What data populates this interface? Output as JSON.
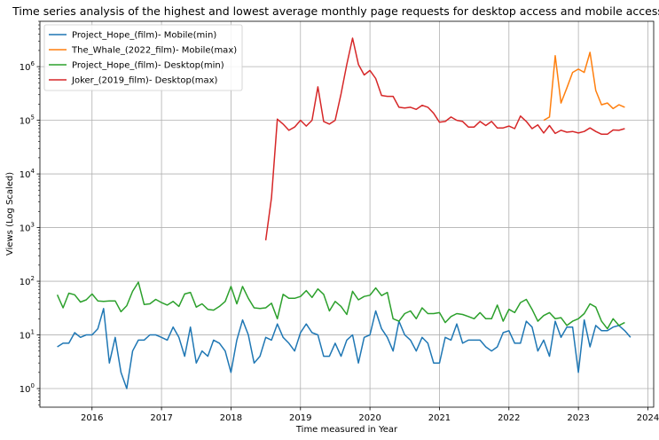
{
  "chart_data": {
    "type": "line",
    "title": "Time series analysis of the highest and lowest average monthly page requests for desktop access and mobile access",
    "xlabel": "Time measured in Year",
    "ylabel": "Views (Log Scaled)",
    "yscale": "log",
    "grid": true,
    "legend_position": "top-left",
    "xlim": [
      "2015-04",
      "2024-02"
    ],
    "ylim": [
      0.45,
      7000000
    ],
    "x_ticks": [
      "2016",
      "2017",
      "2018",
      "2019",
      "2020",
      "2021",
      "2022",
      "2023",
      "2024"
    ],
    "y_ticks": [
      {
        "value": 1,
        "base": "10",
        "exp": "0"
      },
      {
        "value": 10,
        "base": "10",
        "exp": "1"
      },
      {
        "value": 100,
        "base": "10",
        "exp": "2"
      },
      {
        "value": 1000,
        "base": "10",
        "exp": "3"
      },
      {
        "value": 10000,
        "base": "10",
        "exp": "4"
      },
      {
        "value": 100000,
        "base": "10",
        "exp": "5"
      },
      {
        "value": 1000000,
        "base": "10",
        "exp": "6"
      }
    ],
    "series": [
      {
        "name": "Project_Hope_(film)- Mobile(min)",
        "color": "#1f77b4",
        "start": "2015-07",
        "values": [
          6,
          7,
          7,
          11,
          9,
          10,
          10,
          13,
          31,
          3,
          9,
          2,
          1,
          5,
          8,
          8,
          10,
          10,
          9,
          8,
          14,
          9,
          4,
          14,
          3,
          5,
          4,
          8,
          7,
          5,
          2,
          8,
          19,
          10,
          3,
          4,
          9,
          8,
          16,
          9,
          7,
          5,
          11,
          16,
          11,
          10,
          4,
          4,
          7,
          4,
          8,
          10,
          3,
          9,
          10,
          28,
          13,
          9,
          5,
          18,
          10,
          8,
          5,
          9,
          7,
          3,
          3,
          9,
          8,
          16,
          7,
          8,
          8,
          8,
          6,
          5,
          6,
          11,
          12,
          7,
          7,
          18,
          14,
          5,
          8,
          4,
          18,
          9,
          14,
          14,
          2,
          19,
          6,
          15,
          12,
          12,
          14,
          15,
          12,
          9
        ]
      },
      {
        "name": "The_Whale_(2022_film)- Mobile(max)",
        "color": "#ff7f0e",
        "start": "2022-07",
        "values": [
          100000,
          115000,
          1600000,
          210000,
          400000,
          780000,
          900000,
          780000,
          1850000,
          360000,
          195000,
          210000,
          165000,
          195000,
          175000
        ]
      },
      {
        "name": "Project_Hope_(film)- Desktop(min)",
        "color": "#2ca02c",
        "start": "2015-07",
        "values": [
          56,
          32,
          60,
          56,
          41,
          45,
          58,
          43,
          42,
          43,
          43,
          27,
          35,
          65,
          96,
          37,
          38,
          46,
          40,
          36,
          42,
          34,
          58,
          62,
          33,
          38,
          30,
          29,
          34,
          42,
          80,
          38,
          80,
          48,
          32,
          31,
          32,
          39,
          20,
          57,
          48,
          48,
          52,
          67,
          50,
          72,
          57,
          28,
          42,
          34,
          24,
          65,
          45,
          52,
          55,
          75,
          54,
          62,
          20,
          18,
          25,
          28,
          20,
          32,
          25,
          25,
          26,
          17,
          22,
          25,
          24,
          22,
          20,
          26,
          20,
          20,
          36,
          18,
          30,
          26,
          40,
          46,
          30,
          18,
          23,
          26,
          20,
          21,
          15,
          18,
          20,
          25,
          38,
          33,
          18,
          13,
          20,
          15,
          17
        ]
      },
      {
        "name": "Joker_(2019_film)- Desktop(max)",
        "color": "#d62728",
        "start": "2018-07",
        "values": [
          580,
          3600,
          105000,
          85000,
          65000,
          75000,
          100000,
          78000,
          100000,
          420000,
          95000,
          85000,
          100000,
          310000,
          1100000,
          3400000,
          1100000,
          700000,
          850000,
          600000,
          290000,
          280000,
          280000,
          175000,
          170000,
          175000,
          160000,
          190000,
          175000,
          135000,
          92000,
          95000,
          115000,
          100000,
          95000,
          75000,
          75000,
          95000,
          80000,
          95000,
          72000,
          72000,
          78000,
          70000,
          120000,
          95000,
          70000,
          82000,
          58000,
          80000,
          57000,
          65000,
          60000,
          62000,
          58000,
          62000,
          72000,
          62000,
          55000,
          55000,
          66000,
          65000,
          70000
        ]
      }
    ]
  }
}
